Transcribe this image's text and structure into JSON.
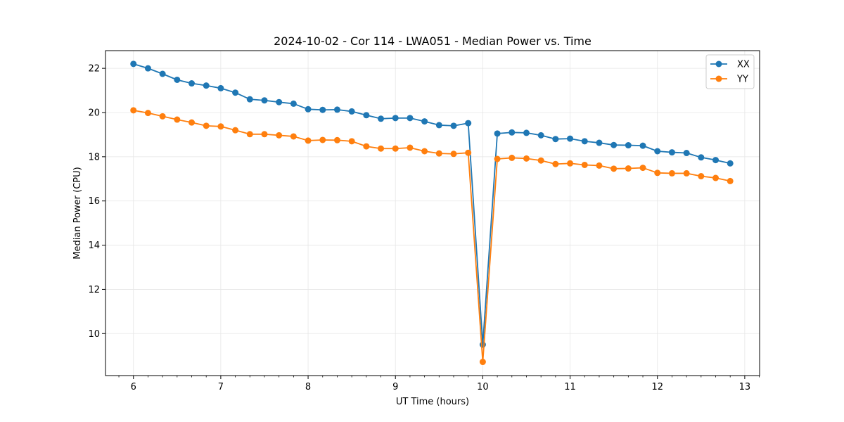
{
  "chart_data": {
    "type": "line",
    "title": "2024-10-02 - Cor 114 - LWA051 - Median Power vs. Time",
    "xlabel": "UT Time (hours)",
    "ylabel": "Median Power (CPU)",
    "xlim": [
      5.68,
      13.17
    ],
    "ylim": [
      8.1,
      22.8
    ],
    "xticks": [
      6,
      7,
      8,
      9,
      10,
      11,
      12,
      13
    ],
    "yticks": [
      10,
      12,
      14,
      16,
      18,
      20,
      22
    ],
    "grid": true,
    "legend_position": "top-right",
    "x": [
      6.0,
      6.1667,
      6.3333,
      6.5,
      6.6667,
      6.8333,
      7.0,
      7.1667,
      7.3333,
      7.5,
      7.6667,
      7.8333,
      8.0,
      8.1667,
      8.3333,
      8.5,
      8.6667,
      8.8333,
      9.0,
      9.1667,
      9.3333,
      9.5,
      9.6667,
      9.8333,
      10.0,
      10.1667,
      10.3333,
      10.5,
      10.6667,
      10.8333,
      11.0,
      11.1667,
      11.3333,
      11.5,
      11.6667,
      11.8333,
      12.0,
      12.1667,
      12.3333,
      12.5,
      12.6667,
      12.8333
    ],
    "series": [
      {
        "name": "XX",
        "color": "#1f77b4",
        "values": [
          22.2,
          22.0,
          21.75,
          21.48,
          21.32,
          21.22,
          21.1,
          20.9,
          20.6,
          20.55,
          20.47,
          20.4,
          20.15,
          20.12,
          20.13,
          20.05,
          19.88,
          19.72,
          19.75,
          19.75,
          19.6,
          19.43,
          19.4,
          19.52,
          9.5,
          19.05,
          19.1,
          19.08,
          18.97,
          18.8,
          18.82,
          18.7,
          18.63,
          18.53,
          18.52,
          18.5,
          18.25,
          18.2,
          18.17,
          17.97,
          17.85,
          17.7
        ]
      },
      {
        "name": "YY",
        "color": "#ff7f0e",
        "values": [
          20.1,
          19.98,
          19.83,
          19.68,
          19.55,
          19.4,
          19.37,
          19.2,
          19.02,
          19.02,
          18.97,
          18.92,
          18.73,
          18.76,
          18.75,
          18.7,
          18.47,
          18.37,
          18.37,
          18.41,
          18.25,
          18.15,
          18.13,
          18.18,
          8.72,
          17.9,
          17.95,
          17.92,
          17.83,
          17.67,
          17.7,
          17.63,
          17.6,
          17.46,
          17.47,
          17.5,
          17.27,
          17.25,
          17.25,
          17.12,
          17.04,
          16.9
        ]
      }
    ]
  }
}
